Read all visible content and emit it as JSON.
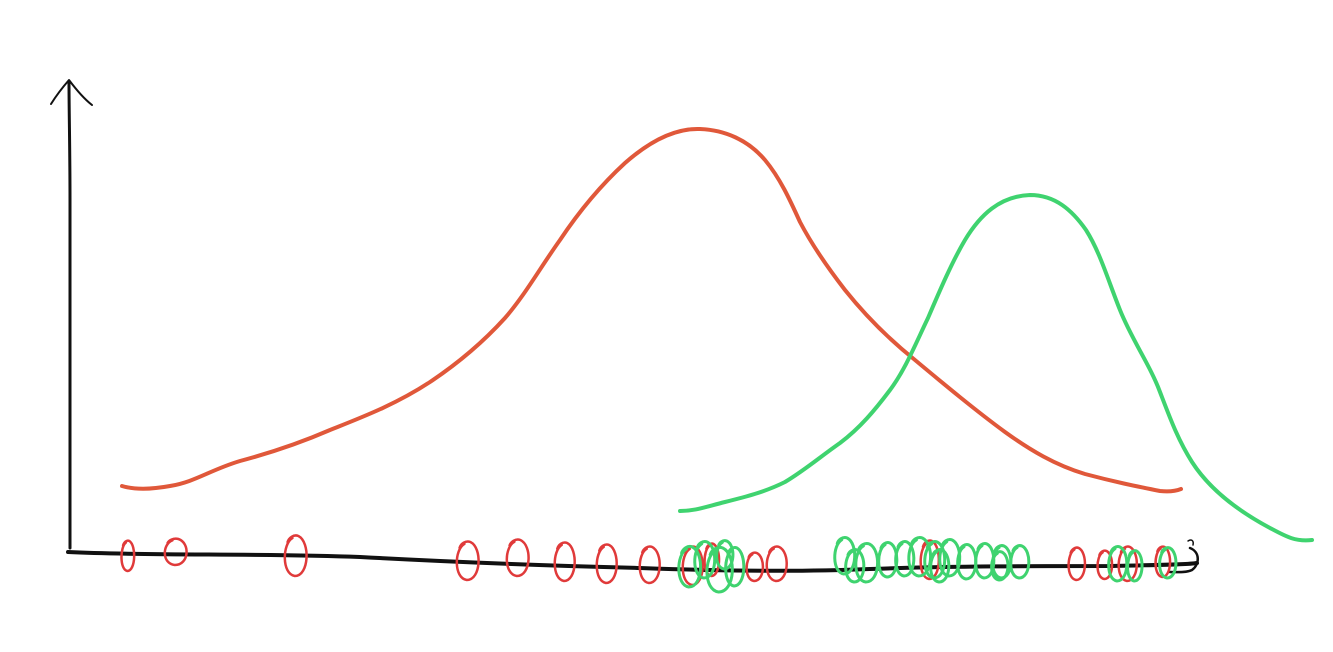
{
  "diagram": {
    "description_kind": "hand-drawn density sketch",
    "colors": {
      "axis": "#111111",
      "red_series": "#e0583a",
      "red_dots": "#e03a3a",
      "green_series": "#3fd36f",
      "background": "#ffffff"
    },
    "series": [
      {
        "name": "red",
        "curve_peak": "left-center",
        "sample_count": 18
      },
      {
        "name": "green",
        "curve_peak": "right",
        "sample_count": 22
      }
    ]
  }
}
